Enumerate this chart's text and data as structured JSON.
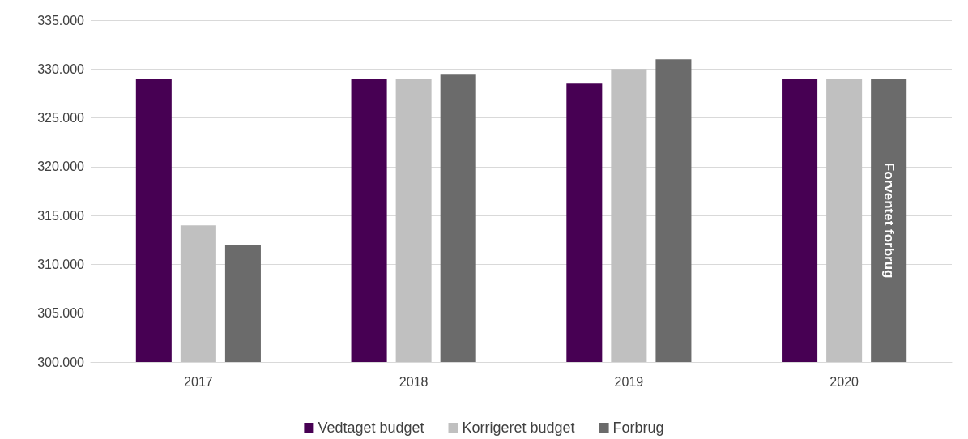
{
  "chart_data": {
    "type": "bar",
    "categories": [
      "2017",
      "2018",
      "2019",
      "2020"
    ],
    "series": [
      {
        "name": "Vedtaget budget",
        "color": "#470053",
        "values": [
          329000,
          329000,
          328500,
          329000
        ]
      },
      {
        "name": "Korrigeret budget",
        "color": "#c0c0c0",
        "values": [
          314000,
          329000,
          330000,
          329000
        ]
      },
      {
        "name": "Forbrug",
        "color": "#6b6b6b",
        "values": [
          312000,
          329500,
          331000,
          329000
        ]
      }
    ],
    "ylim": [
      300000,
      335000
    ],
    "yticks": [
      {
        "value": 300000,
        "label": "300.000"
      },
      {
        "value": 305000,
        "label": "305.000"
      },
      {
        "value": 310000,
        "label": "310.000"
      },
      {
        "value": 315000,
        "label": "315.000"
      },
      {
        "value": 320000,
        "label": "320.000"
      },
      {
        "value": 325000,
        "label": "325.000"
      },
      {
        "value": 330000,
        "label": "330.000"
      },
      {
        "value": 335000,
        "label": "335.000"
      }
    ],
    "annotations": [
      "Forventet forbrug"
    ],
    "grid": "y",
    "legend": "bottom"
  }
}
